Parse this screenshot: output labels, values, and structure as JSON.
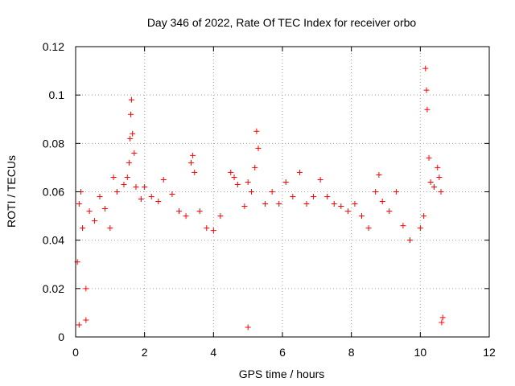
{
  "chart_data": {
    "type": "scatter",
    "title": "Day 346 of 2022, Rate Of TEC Index for receiver orbo",
    "xlabel": "GPS time / hours",
    "ylabel": "ROTI / TECUs",
    "xlim": [
      0,
      12
    ],
    "ylim": [
      0,
      0.12
    ],
    "xticks": [
      "0",
      "2",
      "4",
      "6",
      "8",
      "10",
      "12"
    ],
    "yticks": [
      "0",
      "0.02",
      "0.04",
      "0.06",
      "0.08",
      "0.1",
      "0.12"
    ],
    "grid": true,
    "marker": "+",
    "color": "#ff0000",
    "series": [
      {
        "name": "ROTI",
        "points": [
          [
            0.05,
            0.031
          ],
          [
            0.1,
            0.055
          ],
          [
            0.15,
            0.06
          ],
          [
            0.2,
            0.045
          ],
          [
            0.3,
            0.02
          ],
          [
            0.4,
            0.052
          ],
          [
            0.55,
            0.048
          ],
          [
            0.7,
            0.058
          ],
          [
            0.85,
            0.053
          ],
          [
            1.0,
            0.045
          ],
          [
            1.1,
            0.066
          ],
          [
            1.2,
            0.06
          ],
          [
            1.4,
            0.063
          ],
          [
            1.5,
            0.066
          ],
          [
            1.55,
            0.072
          ],
          [
            1.58,
            0.082
          ],
          [
            1.6,
            0.092
          ],
          [
            1.62,
            0.098
          ],
          [
            1.65,
            0.084
          ],
          [
            1.7,
            0.076
          ],
          [
            1.75,
            0.062
          ],
          [
            1.9,
            0.057
          ],
          [
            2.0,
            0.062
          ],
          [
            2.2,
            0.058
          ],
          [
            2.4,
            0.056
          ],
          [
            2.55,
            0.065
          ],
          [
            2.8,
            0.059
          ],
          [
            3.0,
            0.052
          ],
          [
            3.2,
            0.05
          ],
          [
            3.35,
            0.072
          ],
          [
            3.4,
            0.075
          ],
          [
            3.45,
            0.068
          ],
          [
            3.6,
            0.052
          ],
          [
            3.8,
            0.045
          ],
          [
            4.0,
            0.044
          ],
          [
            4.2,
            0.05
          ],
          [
            4.5,
            0.068
          ],
          [
            4.6,
            0.066
          ],
          [
            4.7,
            0.063
          ],
          [
            4.9,
            0.054
          ],
          [
            5.0,
            0.064
          ],
          [
            5.1,
            0.06
          ],
          [
            5.2,
            0.07
          ],
          [
            5.25,
            0.085
          ],
          [
            5.3,
            0.078
          ],
          [
            5.5,
            0.055
          ],
          [
            5.7,
            0.06
          ],
          [
            5.9,
            0.055
          ],
          [
            6.1,
            0.064
          ],
          [
            6.3,
            0.058
          ],
          [
            6.5,
            0.068
          ],
          [
            6.7,
            0.055
          ],
          [
            6.9,
            0.058
          ],
          [
            7.1,
            0.065
          ],
          [
            7.3,
            0.058
          ],
          [
            7.5,
            0.055
          ],
          [
            7.7,
            0.054
          ],
          [
            7.9,
            0.052
          ],
          [
            8.1,
            0.055
          ],
          [
            8.3,
            0.05
          ],
          [
            8.5,
            0.045
          ],
          [
            8.7,
            0.06
          ],
          [
            8.8,
            0.067
          ],
          [
            8.9,
            0.056
          ],
          [
            9.1,
            0.052
          ],
          [
            9.3,
            0.06
          ],
          [
            9.5,
            0.046
          ],
          [
            9.7,
            0.04
          ],
          [
            10.0,
            0.045
          ],
          [
            10.1,
            0.05
          ],
          [
            10.15,
            0.111
          ],
          [
            10.18,
            0.102
          ],
          [
            10.2,
            0.094
          ],
          [
            10.25,
            0.074
          ],
          [
            10.3,
            0.064
          ],
          [
            10.4,
            0.062
          ],
          [
            10.5,
            0.07
          ],
          [
            10.55,
            0.066
          ],
          [
            10.6,
            0.06
          ],
          [
            10.62,
            0.006
          ],
          [
            0.1,
            0.005
          ],
          [
            0.3,
            0.007
          ],
          [
            5.0,
            0.004
          ],
          [
            10.65,
            0.008
          ]
        ]
      }
    ]
  }
}
